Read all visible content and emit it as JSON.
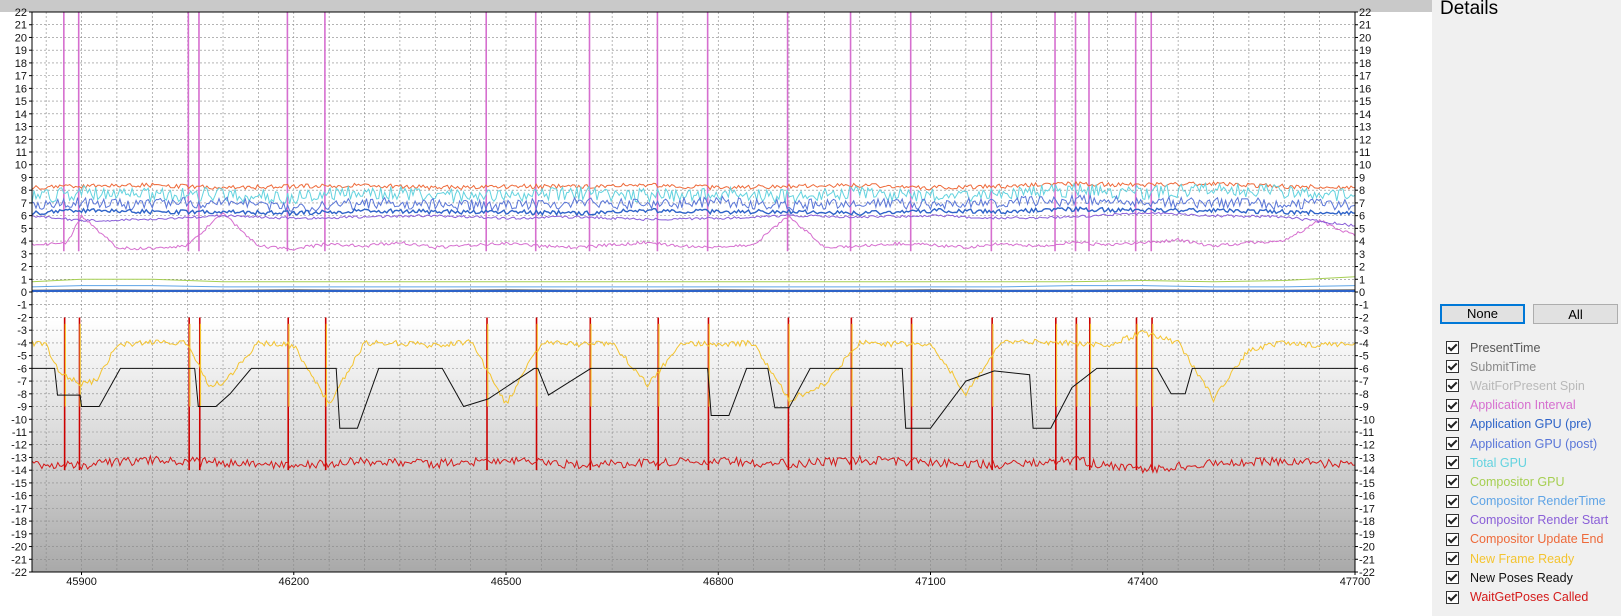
{
  "details": {
    "title": "Details",
    "none_label": "None",
    "all_label": "All"
  },
  "legend": [
    {
      "label": "PresentTime",
      "color": "#555555",
      "checked": true
    },
    {
      "label": "SubmitTime",
      "color": "#8a8a8a",
      "checked": true
    },
    {
      "label": "WaitForPresent Spin",
      "color": "#b9b9b9",
      "checked": true
    },
    {
      "label": "Application Interval",
      "color": "#d66fcf",
      "checked": true
    },
    {
      "label": "Application GPU (pre)",
      "color": "#2e63c8",
      "checked": true
    },
    {
      "label": "Application GPU (post)",
      "color": "#5a76d8",
      "checked": true
    },
    {
      "label": "Total GPU",
      "color": "#63d3df",
      "checked": true
    },
    {
      "label": "Compositor GPU",
      "color": "#a6cf52",
      "checked": true
    },
    {
      "label": "Compositor RenderTime",
      "color": "#5fa4e6",
      "checked": true
    },
    {
      "label": "Compositor Render Start",
      "color": "#8a5fd8",
      "checked": true
    },
    {
      "label": "Compositor Update End",
      "color": "#ee6a3a",
      "checked": true
    },
    {
      "label": "New Frame Ready",
      "color": "#f4c430",
      "checked": true
    },
    {
      "label": "New Poses Ready",
      "color": "#111111",
      "checked": true
    },
    {
      "label": "WaitGetPoses Called",
      "color": "#d41a1a",
      "checked": true
    }
  ],
  "chart_data": {
    "type": "line",
    "xlim": [
      45830,
      47700
    ],
    "ylim": [
      -22,
      22
    ],
    "x_ticks": [
      45900,
      46200,
      46500,
      46800,
      47100,
      47400,
      47700
    ],
    "y_ticks": [
      -22,
      -21,
      -20,
      -19,
      -18,
      -17,
      -16,
      -15,
      -14,
      -13,
      -12,
      -11,
      -10,
      -9,
      -8,
      -7,
      -6,
      -5,
      -4,
      -3,
      -2,
      -1,
      0,
      1,
      2,
      3,
      4,
      5,
      6,
      7,
      8,
      9,
      10,
      11,
      12,
      13,
      14,
      15,
      16,
      17,
      18,
      19,
      20,
      21,
      22
    ],
    "grid": true,
    "event_spikes_x": [
      45875,
      45896,
      46051,
      46066,
      46191,
      46244,
      46472,
      46542,
      46618,
      46714,
      46785,
      46898,
      46987,
      47072,
      47186,
      47276,
      47305,
      47324,
      47390,
      47412
    ],
    "series": [
      {
        "name": "Application Interval",
        "color": "#d66fcf",
        "x": [
          45830,
          45880,
          45900,
          45950,
          46000,
          46050,
          46100,
          46150,
          46200,
          46250,
          46300,
          46350,
          46400,
          46450,
          46500,
          46550,
          46600,
          46650,
          46700,
          46750,
          46800,
          46850,
          46900,
          46950,
          47000,
          47050,
          47100,
          47150,
          47200,
          47250,
          47300,
          47350,
          47400,
          47450,
          47500,
          47550,
          47600,
          47650,
          47700
        ],
        "y": [
          3.7,
          3.9,
          6.0,
          3.5,
          3.4,
          3.7,
          6.2,
          3.6,
          3.4,
          3.8,
          3.6,
          3.9,
          3.5,
          3.7,
          3.8,
          3.6,
          3.5,
          3.7,
          3.9,
          3.6,
          3.5,
          3.7,
          6.0,
          3.5,
          3.6,
          3.8,
          3.7,
          3.5,
          3.8,
          3.6,
          3.9,
          3.7,
          3.9,
          4.1,
          3.6,
          3.9,
          4.0,
          5.6,
          4.4
        ]
      },
      {
        "name": "Compositor Update End",
        "color": "#ee6a3a",
        "x": [
          45830,
          45900,
          46000,
          46100,
          46200,
          46300,
          46400,
          46500,
          46600,
          46700,
          46800,
          46900,
          47000,
          47100,
          47200,
          47300,
          47400,
          47500,
          47600,
          47700
        ],
        "y": [
          8.2,
          8.3,
          8.4,
          8.2,
          8.3,
          8.4,
          8.2,
          8.3,
          8.3,
          8.4,
          8.2,
          8.3,
          8.4,
          8.2,
          8.3,
          8.5,
          8.4,
          8.5,
          8.3,
          8.2
        ]
      },
      {
        "name": "Total GPU",
        "color": "#63d3df",
        "x": [
          45830,
          45900,
          46000,
          46100,
          46200,
          46300,
          46400,
          46500,
          46600,
          46700,
          46800,
          46900,
          47000,
          47100,
          47200,
          47300,
          47400,
          47500,
          47600,
          47700
        ],
        "y": [
          7.5,
          7.8,
          7.6,
          7.7,
          7.4,
          7.9,
          7.6,
          7.5,
          7.8,
          7.6,
          7.7,
          7.5,
          7.8,
          7.6,
          7.7,
          8.0,
          7.8,
          8.1,
          7.9,
          7.6
        ]
      },
      {
        "name": "Application GPU (post)",
        "color": "#5a76d8",
        "x": [
          45830,
          45900,
          46000,
          46100,
          46200,
          46300,
          46400,
          46500,
          46600,
          46700,
          46800,
          46900,
          47000,
          47100,
          47200,
          47300,
          47400,
          47500,
          47600,
          47700
        ],
        "y": [
          6.8,
          7.0,
          6.9,
          7.1,
          6.7,
          7.0,
          6.9,
          6.8,
          7.0,
          6.9,
          7.1,
          6.8,
          7.0,
          6.9,
          7.0,
          7.2,
          7.1,
          7.0,
          6.9,
          6.8
        ]
      },
      {
        "name": "Application GPU (pre)",
        "color": "#2e63c8",
        "x": [
          45830,
          45900,
          46000,
          46100,
          46200,
          46300,
          46400,
          46500,
          46600,
          46700,
          46800,
          46900,
          47000,
          47100,
          47200,
          47300,
          47400,
          47500,
          47600,
          47700
        ],
        "y": [
          6.2,
          6.4,
          6.3,
          6.3,
          6.2,
          6.4,
          6.3,
          6.3,
          6.2,
          6.4,
          6.3,
          6.3,
          6.2,
          6.4,
          6.3,
          6.5,
          6.4,
          6.4,
          6.3,
          6.2
        ]
      },
      {
        "name": "Compositor Render Start",
        "color": "#8a5fd8",
        "x": [
          45830,
          45900,
          46000,
          46100,
          46200,
          46300,
          46400,
          46500,
          46600,
          46700,
          46800,
          46900,
          47000,
          47100,
          47200,
          47300,
          47400,
          47500,
          47600,
          47700
        ],
        "y": [
          6.0,
          5.6,
          5.7,
          6.0,
          5.8,
          5.9,
          6.0,
          5.8,
          5.9,
          5.7,
          5.8,
          6.0,
          5.9,
          6.0,
          5.8,
          5.9,
          6.2,
          6.0,
          5.9,
          5.2
        ]
      },
      {
        "name": "Compositor GPU",
        "color": "#a6cf52",
        "x": [
          45830,
          45900,
          46000,
          46100,
          46200,
          46300,
          46400,
          46500,
          46600,
          46700,
          46800,
          46900,
          47000,
          47100,
          47200,
          47300,
          47400,
          47500,
          47600,
          47700
        ],
        "y": [
          0.8,
          1.0,
          1.0,
          0.8,
          0.8,
          0.8,
          0.8,
          0.8,
          0.8,
          0.8,
          0.8,
          0.8,
          0.8,
          0.8,
          0.8,
          0.8,
          0.9,
          0.8,
          0.9,
          1.2
        ]
      },
      {
        "name": "Compositor RenderTime",
        "color": "#5fa4e6",
        "x": [
          45830,
          45900,
          46000,
          46100,
          46200,
          46300,
          46400,
          46500,
          46600,
          46700,
          46800,
          46900,
          47000,
          47100,
          47200,
          47300,
          47400,
          47500,
          47600,
          47700
        ],
        "y": [
          0.4,
          0.5,
          0.5,
          0.4,
          0.4,
          0.4,
          0.4,
          0.4,
          0.4,
          0.4,
          0.4,
          0.4,
          0.4,
          0.4,
          0.4,
          0.5,
          0.5,
          0.4,
          0.4,
          0.5
        ]
      },
      {
        "name": "SubmitTime",
        "color": "#8a8a8a",
        "x": [
          45830,
          45900,
          46000,
          46100,
          46200,
          46300,
          46400,
          46500,
          46600,
          46700,
          46800,
          46900,
          47000,
          47100,
          47200,
          47300,
          47400,
          47500,
          47600,
          47700
        ],
        "y": [
          0.15,
          0.2,
          0.15,
          0.15,
          0.2,
          0.15,
          0.15,
          0.2,
          0.15,
          0.15,
          0.2,
          0.15,
          0.15,
          0.2,
          0.15,
          0.15,
          0.2,
          0.15,
          0.15,
          0.2
        ]
      },
      {
        "name": "New Frame Ready",
        "color": "#f4c430",
        "x": [
          45830,
          45850,
          45870,
          45900,
          45920,
          45950,
          45980,
          46050,
          46080,
          46100,
          46150,
          46200,
          46250,
          46300,
          46350,
          46400,
          46450,
          46500,
          46550,
          46600,
          46650,
          46700,
          46750,
          46800,
          46850,
          46900,
          46950,
          47000,
          47050,
          47100,
          47150,
          47200,
          47250,
          47300,
          47350,
          47400,
          47450,
          47500,
          47550,
          47600,
          47650,
          47700
        ],
        "y": [
          -4.0,
          -4.2,
          -6.5,
          -7.2,
          -7.0,
          -4.2,
          -4.0,
          -4.0,
          -7.3,
          -7.2,
          -4.0,
          -4.2,
          -8.8,
          -4.0,
          -4.0,
          -4.2,
          -3.9,
          -8.8,
          -4.0,
          -4.1,
          -4.0,
          -7.3,
          -4.0,
          -4.1,
          -4.0,
          -8.5,
          -7.2,
          -4.0,
          -4.1,
          -4.0,
          -8.0,
          -4.0,
          -3.9,
          -4.0,
          -4.2,
          -3.2,
          -4.0,
          -8.4,
          -4.5,
          -4.0,
          -4.2,
          -4.0
        ]
      },
      {
        "name": "New Poses Ready",
        "color": "#111111",
        "x": [
          45830,
          45862,
          45866,
          45888,
          45898,
          45900,
          45925,
          45955,
          45965,
          46005,
          46060,
          46065,
          46090,
          46110,
          46140,
          46260,
          46265,
          46290,
          46320,
          46360,
          46410,
          46440,
          46475,
          46540,
          46545,
          46560,
          46620,
          46635,
          46660,
          46700,
          46785,
          46790,
          46815,
          46840,
          46870,
          46880,
          46900,
          46930,
          46965,
          47060,
          47065,
          47100,
          47150,
          47190,
          47240,
          47245,
          47270,
          47300,
          47335,
          47400,
          47420,
          47440,
          47460,
          47470,
          47500,
          47700
        ],
        "y": [
          -6.0,
          -6.0,
          -8.1,
          -8.1,
          -8.1,
          -9.0,
          -9.0,
          -6.0,
          -6.0,
          -6.0,
          -6.0,
          -9.0,
          -9.0,
          -8.0,
          -6.0,
          -6.0,
          -10.7,
          -10.7,
          -6.0,
          -6.0,
          -6.0,
          -9.0,
          -8.4,
          -6.0,
          -6.0,
          -8.1,
          -6.0,
          -6.0,
          -6.0,
          -6.0,
          -6.0,
          -9.7,
          -9.7,
          -6.0,
          -6.0,
          -9.1,
          -9.1,
          -6.0,
          -6.0,
          -6.0,
          -10.7,
          -10.7,
          -7.0,
          -6.2,
          -6.5,
          -10.7,
          -10.7,
          -7.5,
          -6.0,
          -6.0,
          -6.0,
          -8.0,
          -8.0,
          -6.0,
          -6.0,
          -6.0
        ]
      },
      {
        "name": "WaitGetPoses Called",
        "color": "#d41a1a",
        "x": [
          45830,
          45900,
          46000,
          46100,
          46200,
          46300,
          46400,
          46500,
          46600,
          46700,
          46800,
          46900,
          47000,
          47100,
          47200,
          47300,
          47350,
          47400,
          47500,
          47600,
          47700
        ],
        "y": [
          -13.5,
          -13.6,
          -13.2,
          -13.4,
          -13.6,
          -13.3,
          -13.5,
          -13.2,
          -13.6,
          -13.4,
          -13.3,
          -13.5,
          -13.2,
          -13.4,
          -13.6,
          -13.2,
          -13.6,
          -14.0,
          -13.4,
          -13.3,
          -13.6
        ]
      }
    ]
  }
}
